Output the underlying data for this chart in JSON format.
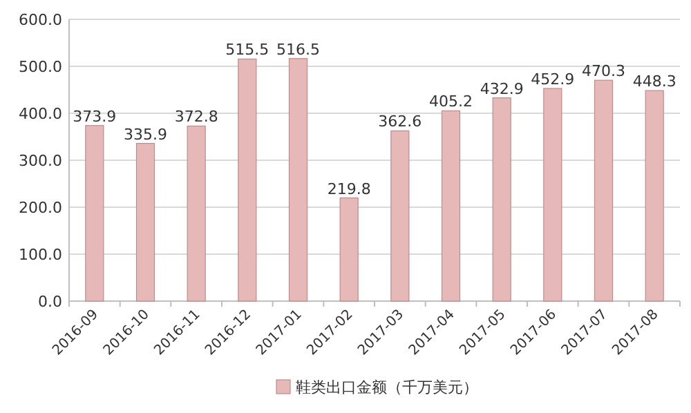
{
  "chart_data": {
    "type": "bar",
    "categories": [
      "2016-09",
      "2016-10",
      "2016-11",
      "2016-12",
      "2017-01",
      "2017-02",
      "2017-03",
      "2017-04",
      "2017-05",
      "2017-06",
      "2017-07",
      "2017-08"
    ],
    "series": [
      {
        "name": "鞋类出口金额（千万美元）",
        "color": "#e6b9b8",
        "values": [
          373.9,
          335.9,
          372.8,
          515.5,
          516.5,
          219.8,
          362.6,
          405.2,
          432.9,
          452.9,
          470.3,
          448.3
        ]
      }
    ],
    "ylim": [
      0,
      600
    ],
    "yticks": [
      {
        "value": 0,
        "label": "0.0"
      },
      {
        "value": 100,
        "label": "100.0"
      },
      {
        "value": 200,
        "label": "200.0"
      },
      {
        "value": 300,
        "label": "300.0"
      },
      {
        "value": 400,
        "label": "400.0"
      },
      {
        "value": 500,
        "label": "500.0"
      },
      {
        "value": 600,
        "label": "600.0"
      }
    ],
    "grid": "y",
    "legend": "bottom",
    "data_labels": true
  }
}
